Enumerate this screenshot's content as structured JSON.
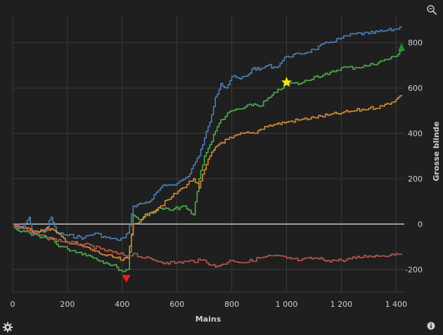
{
  "chart_data": {
    "type": "line",
    "xlabel": "Mains",
    "ylabel": "Grosse blinde",
    "xlim": [
      0,
      1430
    ],
    "ylim": [
      -300,
      920
    ],
    "x_ticks": [
      0,
      200,
      400,
      600,
      800,
      1000,
      1200,
      1400
    ],
    "x_tick_labels": [
      "0",
      "200",
      "400",
      "600",
      "800",
      "1 000",
      "1 200",
      "1 400"
    ],
    "y_ticks": [
      -200,
      0,
      200,
      400,
      600,
      800
    ],
    "y_tick_labels": [
      "-200",
      "0",
      "200",
      "400",
      "600",
      "800"
    ],
    "grid": true,
    "zero_line": true,
    "series": [
      {
        "color": "#4a7fb5",
        "x": [
          0,
          20,
          40,
          60,
          70,
          120,
          140,
          160,
          200,
          260,
          300,
          340,
          380,
          410,
          420,
          440,
          470,
          500,
          540,
          560,
          600,
          640,
          660,
          680,
          700,
          720,
          740,
          760,
          780,
          800,
          830,
          860,
          880,
          900,
          930,
          960,
          1000,
          1050,
          1100,
          1150,
          1200,
          1250,
          1300,
          1350,
          1400,
          1420
        ],
        "y": [
          0,
          -20,
          -10,
          30,
          -40,
          -30,
          30,
          -40,
          -50,
          -60,
          -40,
          -60,
          -70,
          -60,
          -40,
          80,
          90,
          100,
          160,
          170,
          180,
          210,
          260,
          300,
          380,
          450,
          560,
          620,
          600,
          650,
          640,
          660,
          690,
          680,
          700,
          690,
          740,
          750,
          770,
          800,
          820,
          840,
          840,
          850,
          860,
          870
        ]
      },
      {
        "color": "#4fa84f",
        "x": [
          0,
          20,
          60,
          100,
          140,
          160,
          200,
          260,
          300,
          340,
          380,
          400,
          420,
          440,
          460,
          500,
          540,
          580,
          620,
          660,
          680,
          700,
          720,
          740,
          760,
          800,
          840,
          880,
          900,
          940,
          960,
          1000,
          1050,
          1100,
          1150,
          1200,
          1250,
          1300,
          1350,
          1400,
          1420
        ],
        "y": [
          0,
          -30,
          -40,
          -60,
          -60,
          -90,
          -110,
          -130,
          -150,
          -170,
          -190,
          -210,
          -200,
          40,
          20,
          50,
          70,
          60,
          80,
          40,
          200,
          300,
          350,
          410,
          460,
          500,
          510,
          530,
          520,
          560,
          580,
          620,
          620,
          650,
          660,
          690,
          690,
          700,
          720,
          740,
          780
        ]
      },
      {
        "color": "#d4893a",
        "x": [
          0,
          40,
          80,
          140,
          200,
          260,
          300,
          340,
          380,
          400,
          420,
          440,
          470,
          500,
          540,
          580,
          620,
          660,
          680,
          700,
          720,
          740,
          760,
          800,
          840,
          880,
          920,
          960,
          1000,
          1050,
          1100,
          1150,
          1200,
          1250,
          1300,
          1350,
          1400,
          1420
        ],
        "y": [
          0,
          -20,
          -30,
          -20,
          -80,
          -100,
          -120,
          -140,
          -150,
          -160,
          -150,
          0,
          20,
          50,
          80,
          120,
          160,
          200,
          160,
          240,
          300,
          340,
          360,
          380,
          400,
          400,
          430,
          440,
          450,
          460,
          470,
          480,
          490,
          500,
          510,
          520,
          550,
          570
        ]
      },
      {
        "color": "#b85450",
        "x": [
          0,
          60,
          120,
          200,
          260,
          320,
          380,
          420,
          440,
          480,
          520,
          560,
          600,
          640,
          700,
          740,
          760,
          800,
          850,
          900,
          950,
          1000,
          1050,
          1100,
          1150,
          1200,
          1250,
          1300,
          1350,
          1400,
          1420
        ],
        "y": [
          0,
          -30,
          -60,
          -80,
          -90,
          -110,
          -130,
          -140,
          -130,
          -150,
          -160,
          -170,
          -170,
          -165,
          -160,
          -190,
          -180,
          -160,
          -170,
          -150,
          -140,
          -150,
          -160,
          -150,
          -160,
          -160,
          -150,
          -140,
          -140,
          -130,
          -130
        ]
      }
    ],
    "markers": [
      {
        "type": "triangle-down",
        "x": 415,
        "y": -240,
        "color": "#e8231c"
      },
      {
        "type": "star",
        "x": 1000,
        "y": 625,
        "color": "#f5e31f"
      },
      {
        "type": "triangle-up",
        "x": 1420,
        "y": 780,
        "color": "#2e8b2e"
      }
    ],
    "colors": {
      "background": "#1f1f1f",
      "grid": "#3a3a3a",
      "zero_line": "#e0e0e0",
      "tick_text": "#cfcfcf"
    }
  },
  "icons": {
    "zoom": "zoom-magnifier-icon",
    "settings": "gear-icon",
    "info": "info-icon"
  }
}
